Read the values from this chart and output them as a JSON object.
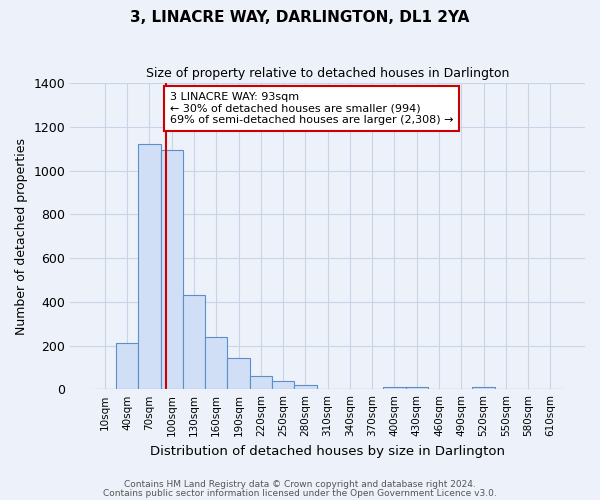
{
  "title": "3, LINACRE WAY, DARLINGTON, DL1 2YA",
  "subtitle": "Size of property relative to detached houses in Darlington",
  "xlabel": "Distribution of detached houses by size in Darlington",
  "ylabel": "Number of detached properties",
  "bar_labels": [
    "10sqm",
    "40sqm",
    "70sqm",
    "100sqm",
    "130sqm",
    "160sqm",
    "190sqm",
    "220sqm",
    "250sqm",
    "280sqm",
    "310sqm",
    "340sqm",
    "370sqm",
    "400sqm",
    "430sqm",
    "460sqm",
    "490sqm",
    "520sqm",
    "550sqm",
    "580sqm",
    "610sqm"
  ],
  "bar_values": [
    0,
    210,
    1120,
    1095,
    430,
    240,
    145,
    60,
    40,
    20,
    0,
    0,
    0,
    10,
    10,
    0,
    0,
    10,
    0,
    0,
    0
  ],
  "bar_color": "#d0dff5",
  "bar_edge_color": "#5b8fc9",
  "vline_color": "#cc0000",
  "annotation_text": "3 LINACRE WAY: 93sqm\n← 30% of detached houses are smaller (994)\n69% of semi-detached houses are larger (2,308) →",
  "annotation_box_color": "white",
  "annotation_box_edge_color": "#cc0000",
  "ylim": [
    0,
    1400
  ],
  "yticks": [
    0,
    200,
    400,
    600,
    800,
    1000,
    1200,
    1400
  ],
  "footer1": "Contains HM Land Registry data © Crown copyright and database right 2024.",
  "footer2": "Contains public sector information licensed under the Open Government Licence v3.0.",
  "background_color": "#edf1f9",
  "plot_bg_color": "#edf1f9",
  "grid_color": "#c8d4e8"
}
